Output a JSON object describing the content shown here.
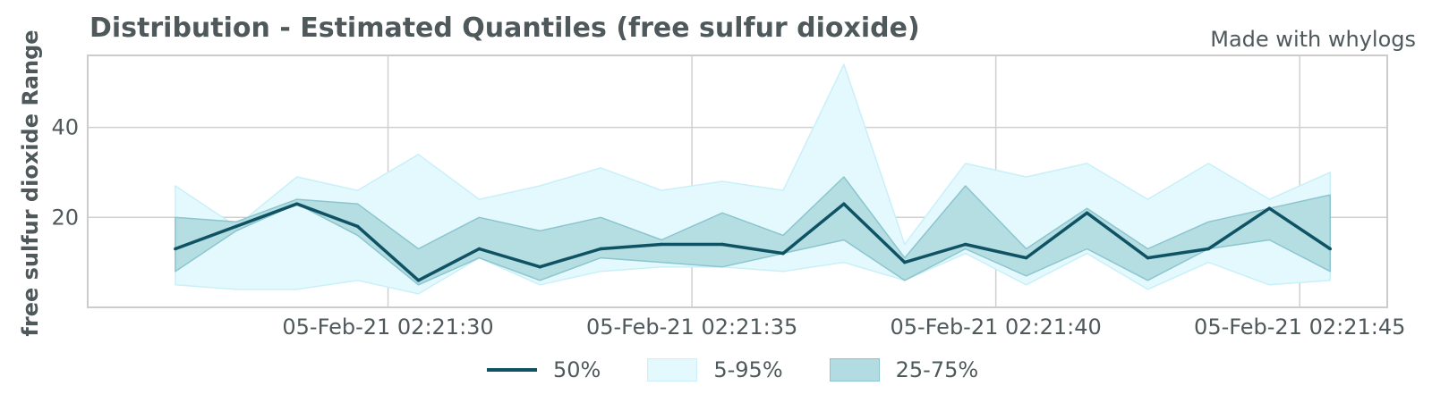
{
  "chart_data": {
    "type": "area",
    "title": "Distribution - Estimated Quantiles (free sulfur dioxide)",
    "credit": "Made with whylogs",
    "xlabel": "",
    "ylabel": "free sulfur dioxide Range",
    "ylim": [
      0,
      56
    ],
    "grid": true,
    "legend_position": "bottom",
    "x_ticks": [
      {
        "value": 5,
        "label": "05-Feb-21 02:21:30"
      },
      {
        "value": 10,
        "label": "05-Feb-21 02:21:35"
      },
      {
        "value": 15,
        "label": "05-Feb-21 02:21:40"
      },
      {
        "value": 20,
        "label": "05-Feb-21 02:21:45"
      }
    ],
    "y_ticks": [
      20,
      40
    ],
    "x": [
      1.5,
      2.5,
      3.5,
      4.5,
      5.5,
      6.5,
      7.5,
      8.5,
      9.5,
      10.5,
      11.5,
      12.5,
      13.5,
      14.5,
      15.5,
      16.5,
      17.5,
      18.5,
      19.5,
      20.5
    ],
    "series": [
      {
        "name": "50%",
        "kind": "line",
        "color": "#0e5263",
        "values": [
          13,
          18,
          23,
          18,
          6,
          13,
          9,
          13,
          14,
          14,
          12,
          23,
          10,
          14,
          11,
          21,
          11,
          13,
          22,
          13
        ]
      },
      {
        "name": "5-95%",
        "kind": "band",
        "color": "#e4f9fd",
        "edge": "#c9f0f8",
        "lower": [
          5,
          4,
          4,
          6,
          3,
          11,
          5,
          8,
          9,
          9,
          8,
          10,
          6,
          12,
          5,
          12,
          4,
          10,
          5,
          6
        ],
        "upper": [
          27,
          18,
          29,
          26,
          34,
          24,
          27,
          31,
          26,
          28,
          26,
          54,
          14,
          32,
          29,
          32,
          24,
          32,
          24,
          30
        ]
      },
      {
        "name": "25-75%",
        "kind": "band",
        "color": "#b2dce2",
        "edge": "#8cc5ce",
        "lower": [
          8,
          17,
          23,
          16,
          5,
          11,
          6,
          11,
          10,
          9,
          12,
          15,
          6,
          13,
          7,
          13,
          6,
          13,
          15,
          8
        ],
        "upper": [
          20,
          19,
          24,
          23,
          13,
          20,
          17,
          20,
          15,
          21,
          16,
          29,
          11,
          27,
          13,
          22,
          13,
          19,
          22,
          25
        ]
      }
    ]
  }
}
